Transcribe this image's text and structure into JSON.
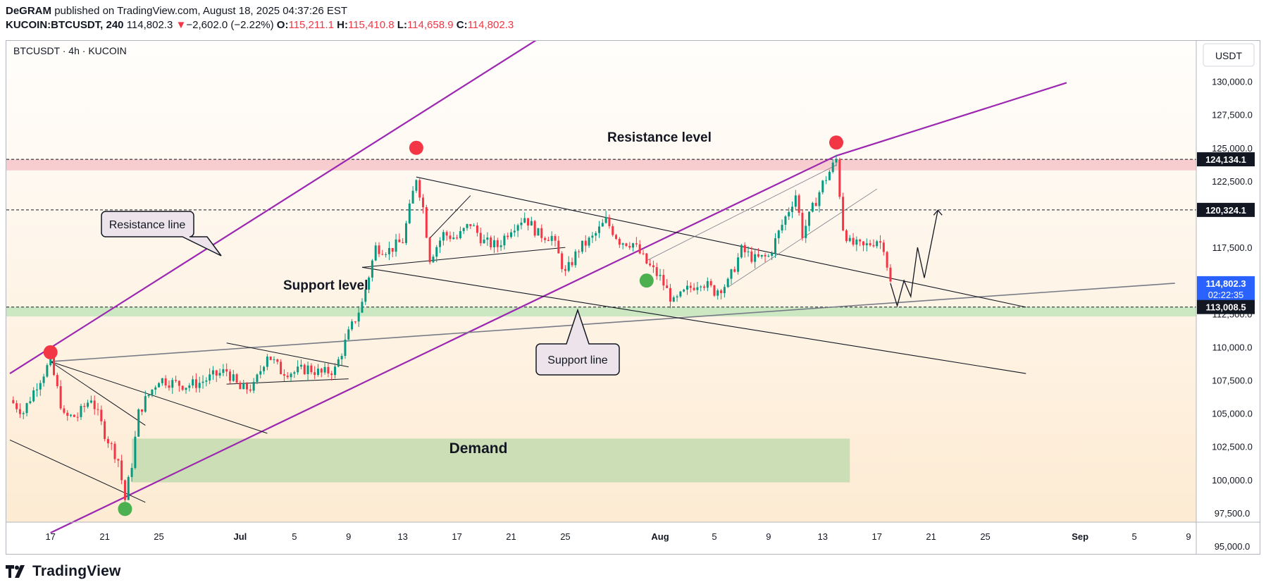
{
  "header": {
    "author": "DeGRAM",
    "published_text": "published on TradingView.com, August 18, 2025 04:37:26 EST",
    "symbol": "KUCOIN:BTCUSDT, 240",
    "last_price": "114,802.3",
    "change_arrow": "▼",
    "change": "−2,602.0 (−2.22%)",
    "o_label": "O:",
    "o_value": "115,211.1",
    "h_label": "H:",
    "h_value": "115,410.8",
    "l_label": "L:",
    "l_value": "114,658.9",
    "c_label": "C:",
    "c_value": "114,802.3"
  },
  "chart_data": {
    "type": "candlestick",
    "title": "BTCUSDT · 4h · KUCOIN",
    "currency": "USDT",
    "ylim": [
      95000,
      131250
    ],
    "y_ticks": [
      95000,
      97500,
      100000,
      102500,
      105000,
      107500,
      110000,
      112500,
      117500,
      122500,
      125000,
      127500,
      130000
    ],
    "y_tick_labels": [
      "95,000.0",
      "97,500.0",
      "100,000.0",
      "102,500.0",
      "105,000.0",
      "107,500.0",
      "110,000.0",
      "112,500.0",
      "117,500.0",
      "122,500.0",
      "125,000.0",
      "127,500.0",
      "130,000.0"
    ],
    "x_range_days": [
      "2025-06-14",
      "2025-09-09"
    ],
    "x_ticks": [
      {
        "date": "2025-06-17",
        "label": "17"
      },
      {
        "date": "2025-06-21",
        "label": "21"
      },
      {
        "date": "2025-06-25",
        "label": "25"
      },
      {
        "date": "2025-07-01",
        "label": "Jul"
      },
      {
        "date": "2025-07-05",
        "label": "5"
      },
      {
        "date": "2025-07-09",
        "label": "9"
      },
      {
        "date": "2025-07-13",
        "label": "13"
      },
      {
        "date": "2025-07-17",
        "label": "17"
      },
      {
        "date": "2025-07-21",
        "label": "21"
      },
      {
        "date": "2025-07-25",
        "label": "25"
      },
      {
        "date": "2025-08-01",
        "label": "Aug"
      },
      {
        "date": "2025-08-05",
        "label": "5"
      },
      {
        "date": "2025-08-09",
        "label": "9"
      },
      {
        "date": "2025-08-13",
        "label": "13"
      },
      {
        "date": "2025-08-17",
        "label": "17"
      },
      {
        "date": "2025-08-21",
        "label": "21"
      },
      {
        "date": "2025-08-25",
        "label": "25"
      },
      {
        "date": "2025-09-01",
        "label": "Sep"
      },
      {
        "date": "2025-09-05",
        "label": "5"
      },
      {
        "date": "2025-09-09",
        "label": "9"
      }
    ],
    "price_marks": [
      {
        "value": 124134.1,
        "label": "124,134.1",
        "style": "dark"
      },
      {
        "value": 120324.1,
        "label": "120,324.1",
        "style": "dark"
      },
      {
        "value": 114802.3,
        "label": "114,802.3",
        "sub": "02:22:35",
        "style": "blue"
      },
      {
        "value": 113008.5,
        "label": "113,008.5",
        "style": "dark"
      }
    ],
    "price_path": [
      [
        "2025-06-14",
        106000
      ],
      [
        "2025-06-15",
        105100
      ],
      [
        "2025-06-16",
        107200
      ],
      [
        "2025-06-17",
        108900
      ],
      [
        "2025-06-18",
        104700
      ],
      [
        "2025-06-19",
        104800
      ],
      [
        "2025-06-20",
        106200
      ],
      [
        "2025-06-21",
        103500
      ],
      [
        "2025-06-22",
        101500
      ],
      [
        "2025-06-22T12:00",
        98500
      ],
      [
        "2025-06-23",
        101200
      ],
      [
        "2025-06-23T12:00",
        105000
      ],
      [
        "2025-06-24",
        106000
      ],
      [
        "2025-06-25",
        107600
      ],
      [
        "2025-06-26",
        107300
      ],
      [
        "2025-06-27",
        107100
      ],
      [
        "2025-06-28",
        107300
      ],
      [
        "2025-06-29",
        107800
      ],
      [
        "2025-06-30",
        108200
      ],
      [
        "2025-07-01",
        106800
      ],
      [
        "2025-07-02",
        107000
      ],
      [
        "2025-07-03",
        109500
      ],
      [
        "2025-07-04",
        108200
      ],
      [
        "2025-07-05",
        108100
      ],
      [
        "2025-07-06",
        108400
      ],
      [
        "2025-07-07",
        108000
      ],
      [
        "2025-07-08",
        108300
      ],
      [
        "2025-07-09",
        111000
      ],
      [
        "2025-07-10",
        113300
      ],
      [
        "2025-07-11",
        117500
      ],
      [
        "2025-07-12",
        117300
      ],
      [
        "2025-07-13",
        118000
      ],
      [
        "2025-07-14",
        122800
      ],
      [
        "2025-07-14T12:00",
        120500
      ],
      [
        "2025-07-15",
        116700
      ],
      [
        "2025-07-16",
        118500
      ],
      [
        "2025-07-17",
        118200
      ],
      [
        "2025-07-18",
        119300
      ],
      [
        "2025-07-19",
        117900
      ],
      [
        "2025-07-20",
        117600
      ],
      [
        "2025-07-21",
        119000
      ],
      [
        "2025-07-22",
        119800
      ],
      [
        "2025-07-23",
        118500
      ],
      [
        "2025-07-24",
        118300
      ],
      [
        "2025-07-25",
        115500
      ],
      [
        "2025-07-26",
        117400
      ],
      [
        "2025-07-27",
        118200
      ],
      [
        "2025-07-28",
        119500
      ],
      [
        "2025-07-29",
        118000
      ],
      [
        "2025-07-30",
        117800
      ],
      [
        "2025-07-31",
        116300
      ],
      [
        "2025-08-01",
        115200
      ],
      [
        "2025-08-02",
        113300
      ],
      [
        "2025-08-03",
        114300
      ],
      [
        "2025-08-04",
        115000
      ],
      [
        "2025-08-05",
        114200
      ],
      [
        "2025-08-06",
        114800
      ],
      [
        "2025-08-07",
        117300
      ],
      [
        "2025-08-08",
        116600
      ],
      [
        "2025-08-09",
        116800
      ],
      [
        "2025-08-10",
        119200
      ],
      [
        "2025-08-11",
        121500
      ],
      [
        "2025-08-11T12:00",
        118500
      ],
      [
        "2025-08-12",
        119800
      ],
      [
        "2025-08-13",
        122300
      ],
      [
        "2025-08-14",
        124100
      ],
      [
        "2025-08-14T12:00",
        119000
      ],
      [
        "2025-08-15",
        117800
      ],
      [
        "2025-08-16",
        117500
      ],
      [
        "2025-08-17",
        118100
      ],
      [
        "2025-08-17T12:00",
        117600
      ],
      [
        "2025-08-18",
        114800
      ]
    ],
    "zones": [
      {
        "name": "resistance-zone",
        "from": 123300,
        "to": 124134.1,
        "color": "#f7cdd0"
      },
      {
        "name": "support-zone",
        "from": 112300,
        "to": 113008.5,
        "color": "#cbe8c3"
      },
      {
        "name": "demand-zone",
        "from": 99800,
        "to": 103100,
        "start": "2025-06-23",
        "end": "2025-08-15",
        "color": "#ccdeb5",
        "label": "Demand"
      }
    ],
    "levels": [
      124134.1,
      120324.1,
      113008.5
    ],
    "annotations": {
      "resistance_level": "Resistance level",
      "support_level": "Support level",
      "resistance_line": "Resistance line",
      "support_line": "Support line"
    },
    "markers": [
      {
        "date": "2025-06-17",
        "price": 109600,
        "color": "#f23645"
      },
      {
        "date": "2025-06-22T12:00",
        "price": 97800,
        "color": "#4caf50"
      },
      {
        "date": "2025-07-14",
        "price": 125000,
        "color": "#f23645"
      },
      {
        "date": "2025-07-31",
        "price": 115000,
        "color": "#4caf50"
      },
      {
        "date": "2025-08-14",
        "price": 125400,
        "color": "#f23645"
      }
    ],
    "projection": [
      [
        "2025-08-18",
        114800
      ],
      [
        "2025-08-18T12:00",
        113100
      ],
      [
        "2025-08-19",
        115000
      ],
      [
        "2025-08-19T12:00",
        113800
      ],
      [
        "2025-08-20",
        117500
      ],
      [
        "2025-08-20T12:00",
        115200
      ],
      [
        "2025-08-21T12:00",
        120300
      ]
    ]
  },
  "footer": {
    "brand": "TradingView"
  }
}
